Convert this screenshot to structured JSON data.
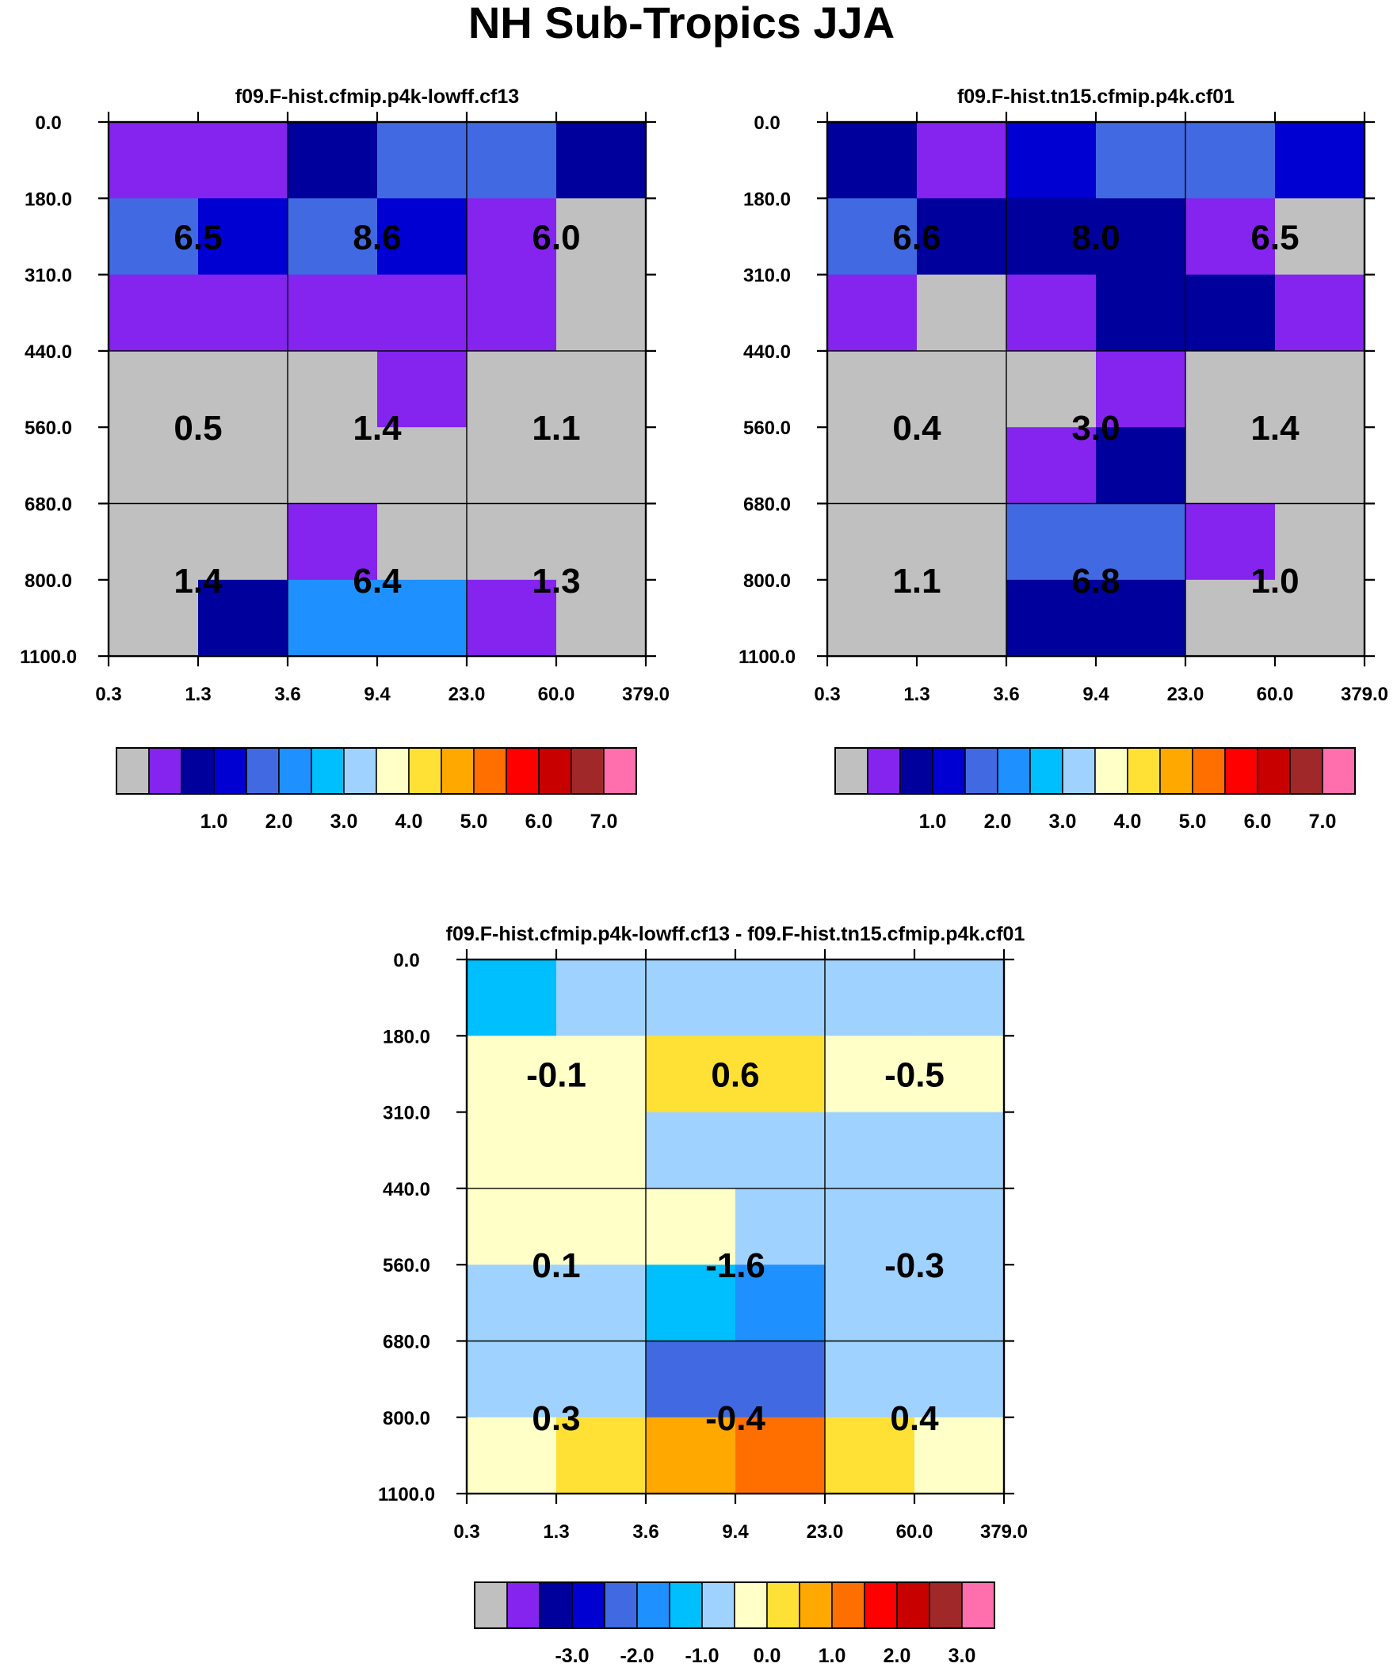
{
  "title": "NH Sub-Tropics JJA",
  "chart_data": [
    {
      "type": "heatmap",
      "title": "f09.F-hist.cfmip.p4k-lowff.cf13",
      "x_ticks": [
        "0.3",
        "1.3",
        "3.6",
        "9.4",
        "23.0",
        "60.0",
        "379.0"
      ],
      "y_ticks": [
        "0.0",
        "180.0",
        "310.0",
        "440.0",
        "560.0",
        "680.0",
        "800.0",
        "1100.0"
      ],
      "bin_values": [
        [
          "6.5",
          "8.6",
          "6.0"
        ],
        [
          "0.5",
          "1.4",
          "1.1"
        ],
        [
          "1.4",
          "6.4",
          "1.3"
        ]
      ],
      "cells": [
        [
          1,
          1,
          2,
          4,
          4,
          2
        ],
        [
          4,
          3,
          4,
          3,
          1,
          0
        ],
        [
          1,
          1,
          1,
          1,
          1,
          0
        ],
        [
          0,
          0,
          0,
          1,
          0,
          0
        ],
        [
          0,
          0,
          0,
          0,
          0,
          0
        ],
        [
          0,
          0,
          1,
          0,
          0,
          0
        ],
        [
          0,
          2,
          5,
          5,
          1,
          0
        ]
      ],
      "colorbar_labels": [
        "1.0",
        "2.0",
        "3.0",
        "4.0",
        "5.0",
        "6.0",
        "7.0"
      ]
    },
    {
      "type": "heatmap",
      "title": "f09.F-hist.tn15.cfmip.p4k.cf01",
      "x_ticks": [
        "0.3",
        "1.3",
        "3.6",
        "9.4",
        "23.0",
        "60.0",
        "379.0"
      ],
      "y_ticks": [
        "0.0",
        "180.0",
        "310.0",
        "440.0",
        "560.0",
        "680.0",
        "800.0",
        "1100.0"
      ],
      "bin_values": [
        [
          "6.6",
          "8.0",
          "6.5"
        ],
        [
          "0.4",
          "3.0",
          "1.4"
        ],
        [
          "1.1",
          "6.8",
          "1.0"
        ]
      ],
      "cells": [
        [
          2,
          1,
          3,
          4,
          4,
          3
        ],
        [
          4,
          2,
          2,
          2,
          1,
          0
        ],
        [
          1,
          0,
          1,
          2,
          2,
          1
        ],
        [
          0,
          0,
          0,
          1,
          0,
          0
        ],
        [
          0,
          0,
          1,
          2,
          0,
          0
        ],
        [
          0,
          0,
          4,
          4,
          1,
          0
        ],
        [
          0,
          0,
          2,
          2,
          0,
          0
        ]
      ],
      "colorbar_labels": [
        "1.0",
        "2.0",
        "3.0",
        "4.0",
        "5.0",
        "6.0",
        "7.0"
      ]
    },
    {
      "type": "heatmap",
      "title": "f09.F-hist.cfmip.p4k-lowff.cf13 - f09.F-hist.tn15.cfmip.p4k.cf01",
      "x_ticks": [
        "0.3",
        "1.3",
        "3.6",
        "9.4",
        "23.0",
        "60.0",
        "379.0"
      ],
      "y_ticks": [
        "0.0",
        "180.0",
        "310.0",
        "440.0",
        "560.0",
        "680.0",
        "800.0",
        "1100.0"
      ],
      "bin_values": [
        [
          "-0.1",
          "0.6",
          "-0.5"
        ],
        [
          "0.1",
          "-1.6",
          "-0.3"
        ],
        [
          "0.3",
          "-0.4",
          "0.4"
        ]
      ],
      "cells": [
        [
          6,
          7,
          7,
          7,
          7,
          7
        ],
        [
          8,
          8,
          9,
          9,
          8,
          8
        ],
        [
          8,
          8,
          7,
          7,
          7,
          7
        ],
        [
          8,
          8,
          8,
          7,
          7,
          7
        ],
        [
          7,
          7,
          6,
          5,
          7,
          7
        ],
        [
          7,
          7,
          4,
          4,
          7,
          7
        ],
        [
          8,
          9,
          10,
          11,
          9,
          8
        ]
      ],
      "colorbar_labels": [
        "-3.0",
        "-2.0",
        "-1.0",
        "0.0",
        "1.0",
        "2.0",
        "3.0"
      ]
    }
  ],
  "palette": [
    "#c0c0c0",
    "#8424ee",
    "#00009c",
    "#0000d2",
    "#4169e1",
    "#1e90ff",
    "#00bfff",
    "#a0d2ff",
    "#ffffc8",
    "#ffe135",
    "#ffa800",
    "#ff6f00",
    "#ff0000",
    "#c80000",
    "#a02828",
    "#ff6ead"
  ]
}
